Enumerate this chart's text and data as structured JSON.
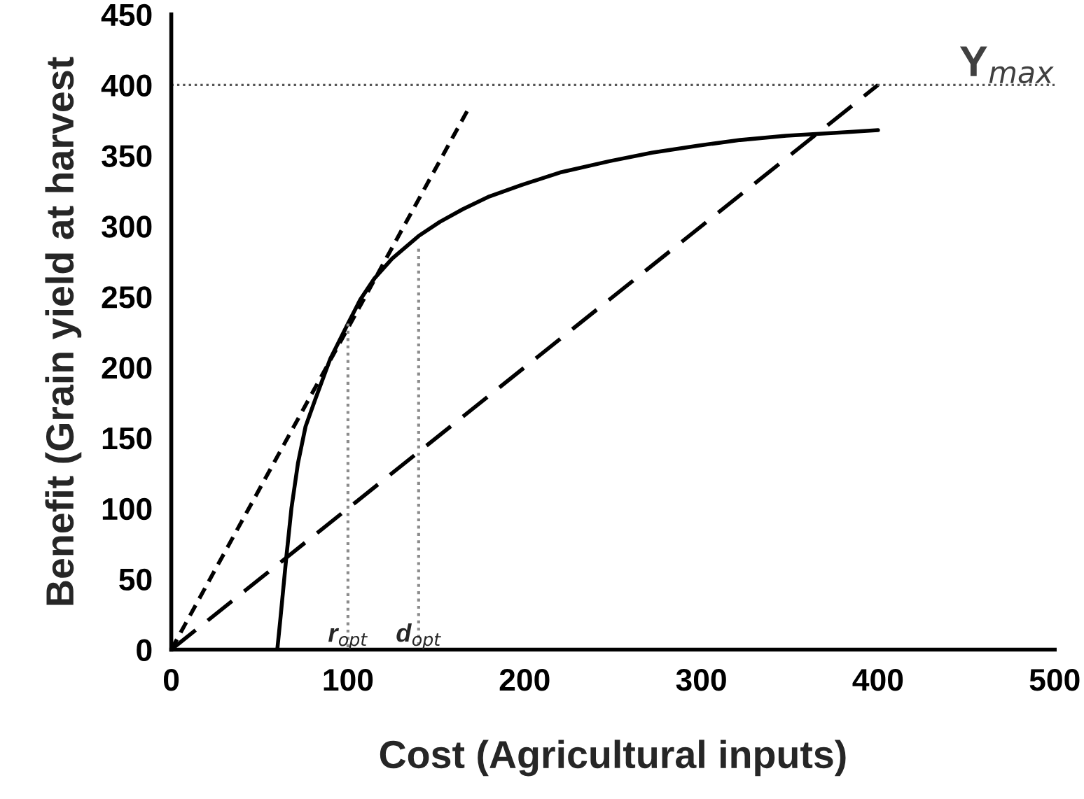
{
  "chart_data": {
    "type": "line",
    "xlabel": "Cost (Agricultural inputs)",
    "ylabel": "Benefit (Grain yield at harvest",
    "xlim": [
      0,
      500
    ],
    "ylim": [
      0,
      450
    ],
    "xticks": [
      0,
      100,
      200,
      300,
      400,
      500
    ],
    "yticks": [
      0,
      50,
      100,
      150,
      200,
      250,
      300,
      350,
      400,
      450
    ],
    "grid": false,
    "legend": false,
    "marker": "none",
    "series": [
      {
        "color": "#000000",
        "line_style": "solid",
        "x": [
          60,
          61.7,
          63,
          65,
          68,
          71.7,
          76,
          81.7,
          90,
          100,
          107,
          115,
          125,
          140,
          152,
          165,
          180,
          198,
          220,
          248,
          272,
          298,
          322,
          348,
          375,
          400
        ],
        "values": [
          0,
          21,
          38,
          64,
          100,
          132,
          158,
          178,
          206,
          231,
          248,
          263,
          277,
          293,
          303,
          312,
          321,
          329,
          338,
          346,
          352,
          357,
          361,
          364,
          366,
          368
        ]
      },
      {
        "color": "#000000",
        "line_style": "dashed",
        "x": [
          0,
          169
        ],
        "values": [
          0,
          385
        ]
      },
      {
        "color": "#000000",
        "line_style": "longdash",
        "x": [
          0,
          400
        ],
        "values": [
          0,
          400
        ]
      },
      {
        "color": "#8c8c8c",
        "line_style": "dotted",
        "x": [
          100,
          100
        ],
        "values": [
          231,
          0
        ]
      },
      {
        "color": "#8c8c8c",
        "line_style": "dotted",
        "x": [
          140,
          140
        ],
        "values": [
          284,
          0
        ]
      }
    ],
    "ref_lines": [
      {
        "axis": "y",
        "value": 400,
        "label": "Y$_{max}$",
        "color": "#555555",
        "line_style": "dotted"
      }
    ],
    "annotations": [
      {
        "text": "r$_{opt}$",
        "x": 100,
        "y": 0
      },
      {
        "text": "d$_{opt}$",
        "x": 140,
        "y": 0
      }
    ]
  }
}
